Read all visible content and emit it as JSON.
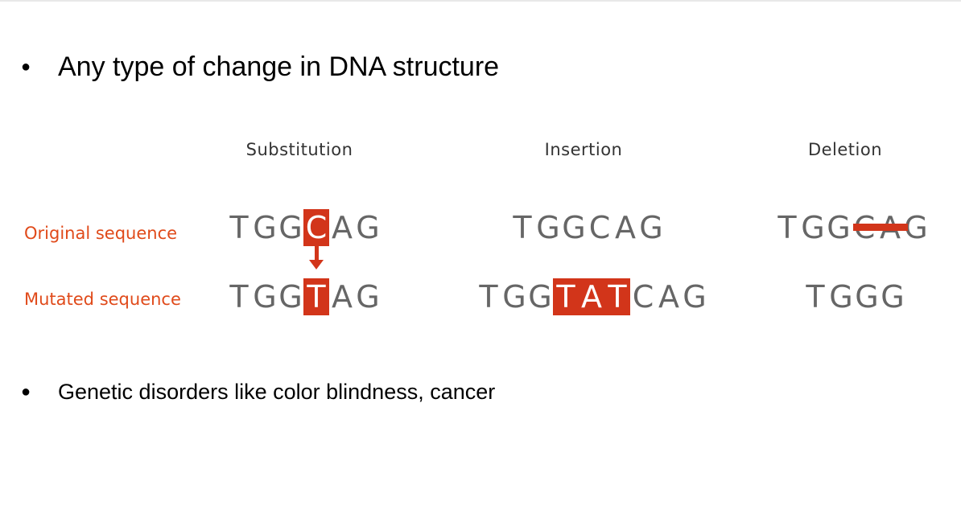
{
  "bullets": [
    {
      "text": "Any type of change in DNA structure"
    },
    {
      "text": "Genetic disorders like color blindness, cancer"
    }
  ],
  "bullet_glyph": "●",
  "diagram": {
    "columns": [
      "Substitution",
      "Insertion",
      "Deletion"
    ],
    "row_labels": [
      "Original sequence",
      "Mutated sequence"
    ],
    "accent_color": "#d2351a",
    "label_color": "#e04a1a",
    "sequences": {
      "substitution": {
        "original": [
          "T",
          "G",
          "G",
          "C",
          "A",
          "G"
        ],
        "original_highlight": [
          3
        ],
        "mutated": [
          "T",
          "G",
          "G",
          "T",
          "A",
          "G"
        ],
        "mutated_highlight": [
          3
        ]
      },
      "insertion": {
        "original": [
          "T",
          "G",
          "G",
          "C",
          "A",
          "G"
        ],
        "mutated": [
          "T",
          "G",
          "G",
          "T",
          "A",
          "T",
          "C",
          "A",
          "G"
        ],
        "mutated_highlight": [
          3,
          4,
          5
        ]
      },
      "deletion": {
        "original": [
          "T",
          "G",
          "G",
          "C",
          "A",
          "G"
        ],
        "original_struck": [
          3,
          4
        ],
        "mutated": [
          "T",
          "G",
          "G",
          "G"
        ]
      }
    }
  }
}
